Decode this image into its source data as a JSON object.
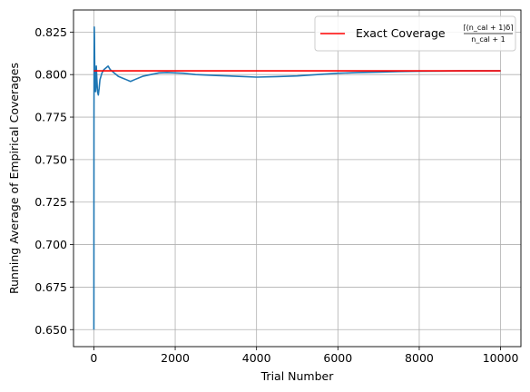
{
  "chart_data": {
    "type": "line",
    "xlabel": "Trial Number",
    "ylabel": "Running Average of Empirical Coverages",
    "xlim": [
      -500,
      10500
    ],
    "ylim": [
      0.64,
      0.838
    ],
    "x_ticks": [
      0,
      2000,
      4000,
      6000,
      8000,
      10000
    ],
    "y_ticks": [
      0.65,
      0.675,
      0.7,
      0.725,
      0.75,
      0.775,
      0.8,
      0.825
    ],
    "grid": true,
    "legend_position": "top-right",
    "series": [
      {
        "color": "#1f77b4",
        "x": [
          1,
          3,
          6,
          10,
          15,
          20,
          25,
          30,
          40,
          50,
          60,
          75,
          90,
          110,
          130,
          150,
          175,
          200,
          250,
          300,
          350,
          400,
          450,
          500,
          600,
          700,
          800,
          900,
          1000,
          1200,
          1400,
          1600,
          1800,
          2000,
          2200,
          2500,
          3000,
          3500,
          4000,
          4500,
          5000,
          5500,
          6000,
          6500,
          7000,
          7500,
          8000,
          8500,
          9000,
          9500,
          10000
        ],
        "y": [
          0.65,
          0.771,
          0.81,
          0.828,
          0.822,
          0.808,
          0.799,
          0.794,
          0.79,
          0.793,
          0.805,
          0.797,
          0.79,
          0.788,
          0.792,
          0.797,
          0.799,
          0.801,
          0.803,
          0.804,
          0.805,
          0.803,
          0.802,
          0.801,
          0.799,
          0.798,
          0.797,
          0.796,
          0.797,
          0.799,
          0.8,
          0.801,
          0.8012,
          0.801,
          0.8008,
          0.8,
          0.7995,
          0.799,
          0.7985,
          0.7988,
          0.7992,
          0.8,
          0.8008,
          0.8012,
          0.8015,
          0.8018,
          0.802,
          0.8021,
          0.8022,
          0.8022,
          0.8022
        ]
      },
      {
        "color": "#ff0000",
        "x": [
          0,
          10000
        ],
        "y": [
          0.8022,
          0.8022
        ]
      }
    ],
    "legend": {
      "label": "Exact Coverage",
      "formula_numerator": "⌈(n_cal + 1)δ⌉",
      "formula_denominator": "n_cal + 1"
    }
  }
}
